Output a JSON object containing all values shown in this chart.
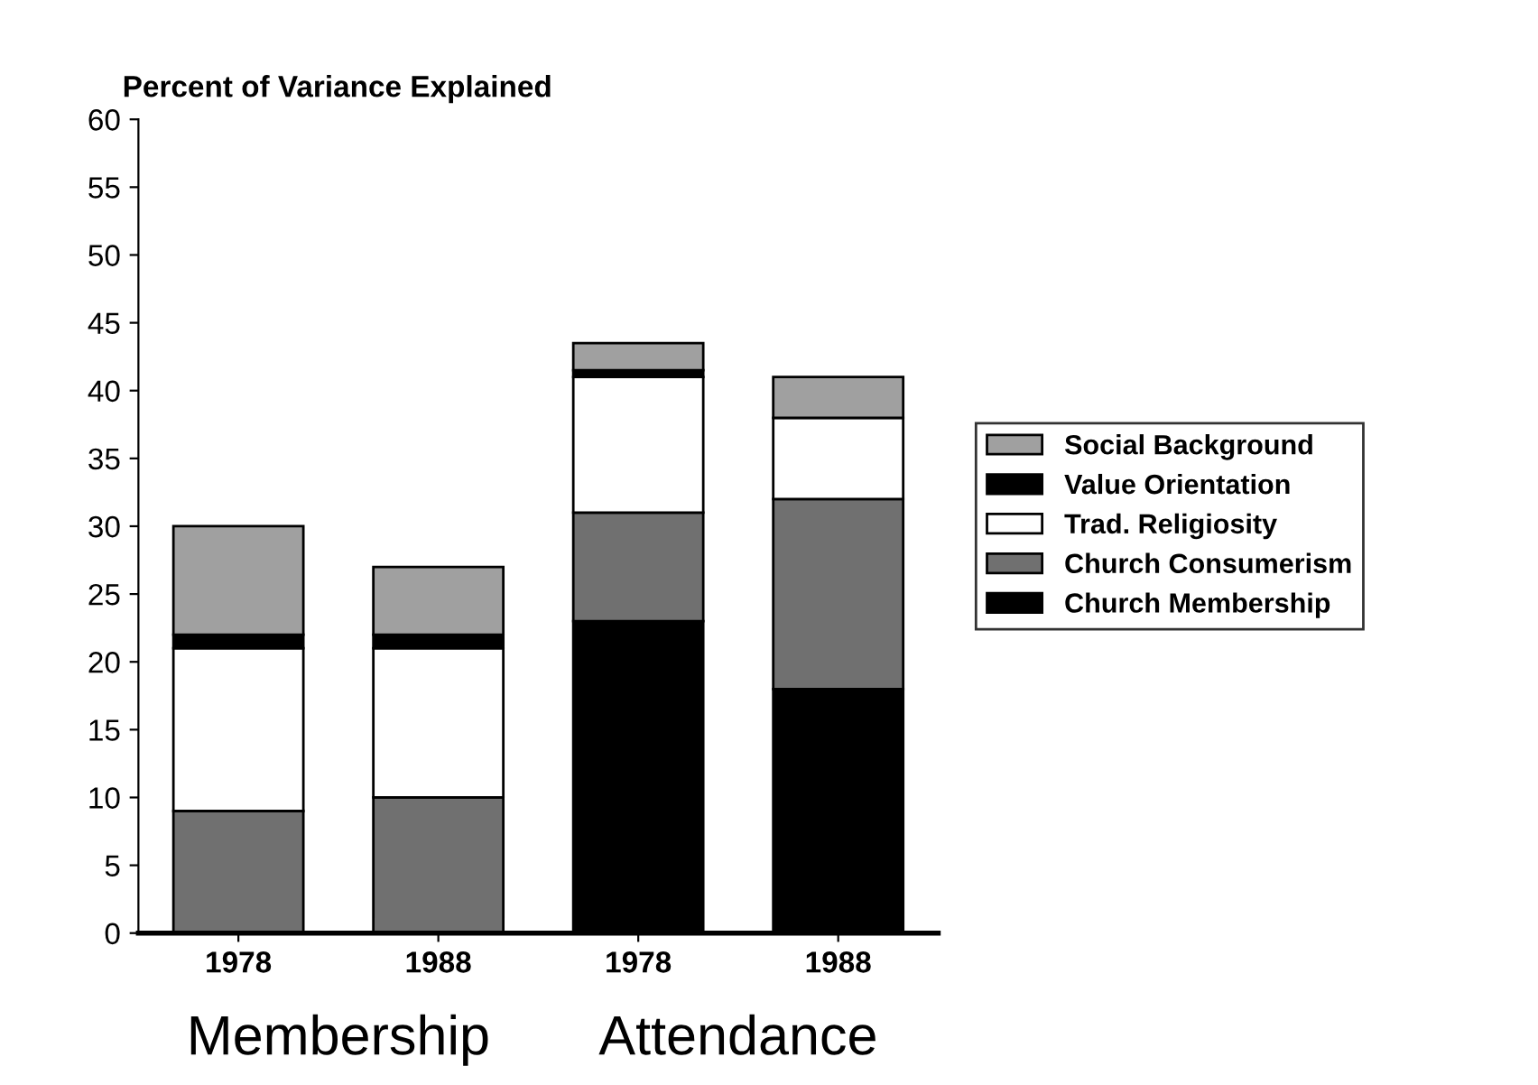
{
  "chart_data": {
    "type": "bar",
    "stacked": true,
    "ylabel": "Percent of Variance Explained",
    "categories": [
      "1978",
      "1988",
      "1978",
      "1988"
    ],
    "series": [
      {
        "name": "Church Membership",
        "color": "#000000",
        "values": [
          0,
          0,
          23,
          18
        ]
      },
      {
        "name": "Church Consumerism",
        "color": "#707070",
        "values": [
          9,
          10,
          8,
          14
        ]
      },
      {
        "name": "Trad. Religiosity",
        "color": "#ffffff",
        "values": [
          12,
          11,
          10,
          6
        ]
      },
      {
        "name": "Value Orientation",
        "color": "#000000",
        "values": [
          1,
          1,
          0.5,
          0
        ]
      },
      {
        "name": "Social Background",
        "color": "#a0a0a0",
        "values": [
          8,
          5,
          2,
          3
        ]
      }
    ],
    "annotations": [
      "Membership",
      "Attendance"
    ],
    "ylim": [
      0,
      60
    ],
    "yticks": [
      0,
      5,
      10,
      15,
      20,
      25,
      30,
      35,
      40,
      45,
      50,
      55,
      60
    ],
    "legend": "right",
    "grid": false
  }
}
